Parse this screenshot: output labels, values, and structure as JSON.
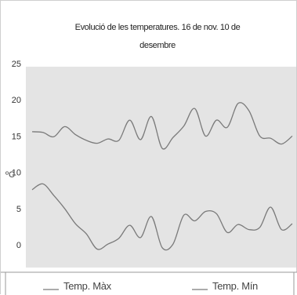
{
  "chart_data": {
    "type": "line",
    "title": "Evolució de les temperatures. 16 de nov. 10 de desembre",
    "xlabel": "",
    "ylabel": "ºC",
    "ylim": [
      0,
      25
    ],
    "yticks": [
      25,
      20,
      15,
      10,
      5,
      0
    ],
    "grid": false,
    "legend_position": "bottom",
    "x": [
      1,
      2,
      3,
      4,
      5,
      6,
      7,
      8,
      9,
      10,
      11,
      12,
      13,
      14,
      15,
      16,
      17,
      18,
      19,
      20,
      21,
      22,
      23,
      24,
      25
    ],
    "series": [
      {
        "name": "Temp. Màx",
        "color": "#7a7a7a",
        "values": [
          15.6,
          15.5,
          14.9,
          16.3,
          15.2,
          14.4,
          14.0,
          14.6,
          14.4,
          17.2,
          14.5,
          17.7,
          13.3,
          14.8,
          16.4,
          18.8,
          15.0,
          17.2,
          16.2,
          19.5,
          18.5,
          15.0,
          14.7,
          13.9,
          15.0
        ]
      },
      {
        "name": "Temp. Mín",
        "color": "#7a7a7a",
        "values": [
          7.6,
          8.4,
          6.8,
          5.0,
          2.9,
          1.5,
          -0.6,
          0.1,
          0.9,
          2.7,
          1.0,
          3.9,
          -0.4,
          0.1,
          4.1,
          3.3,
          4.6,
          4.3,
          1.7,
          2.8,
          2.1,
          2.4,
          5.2,
          2.1,
          2.9
        ]
      }
    ]
  }
}
